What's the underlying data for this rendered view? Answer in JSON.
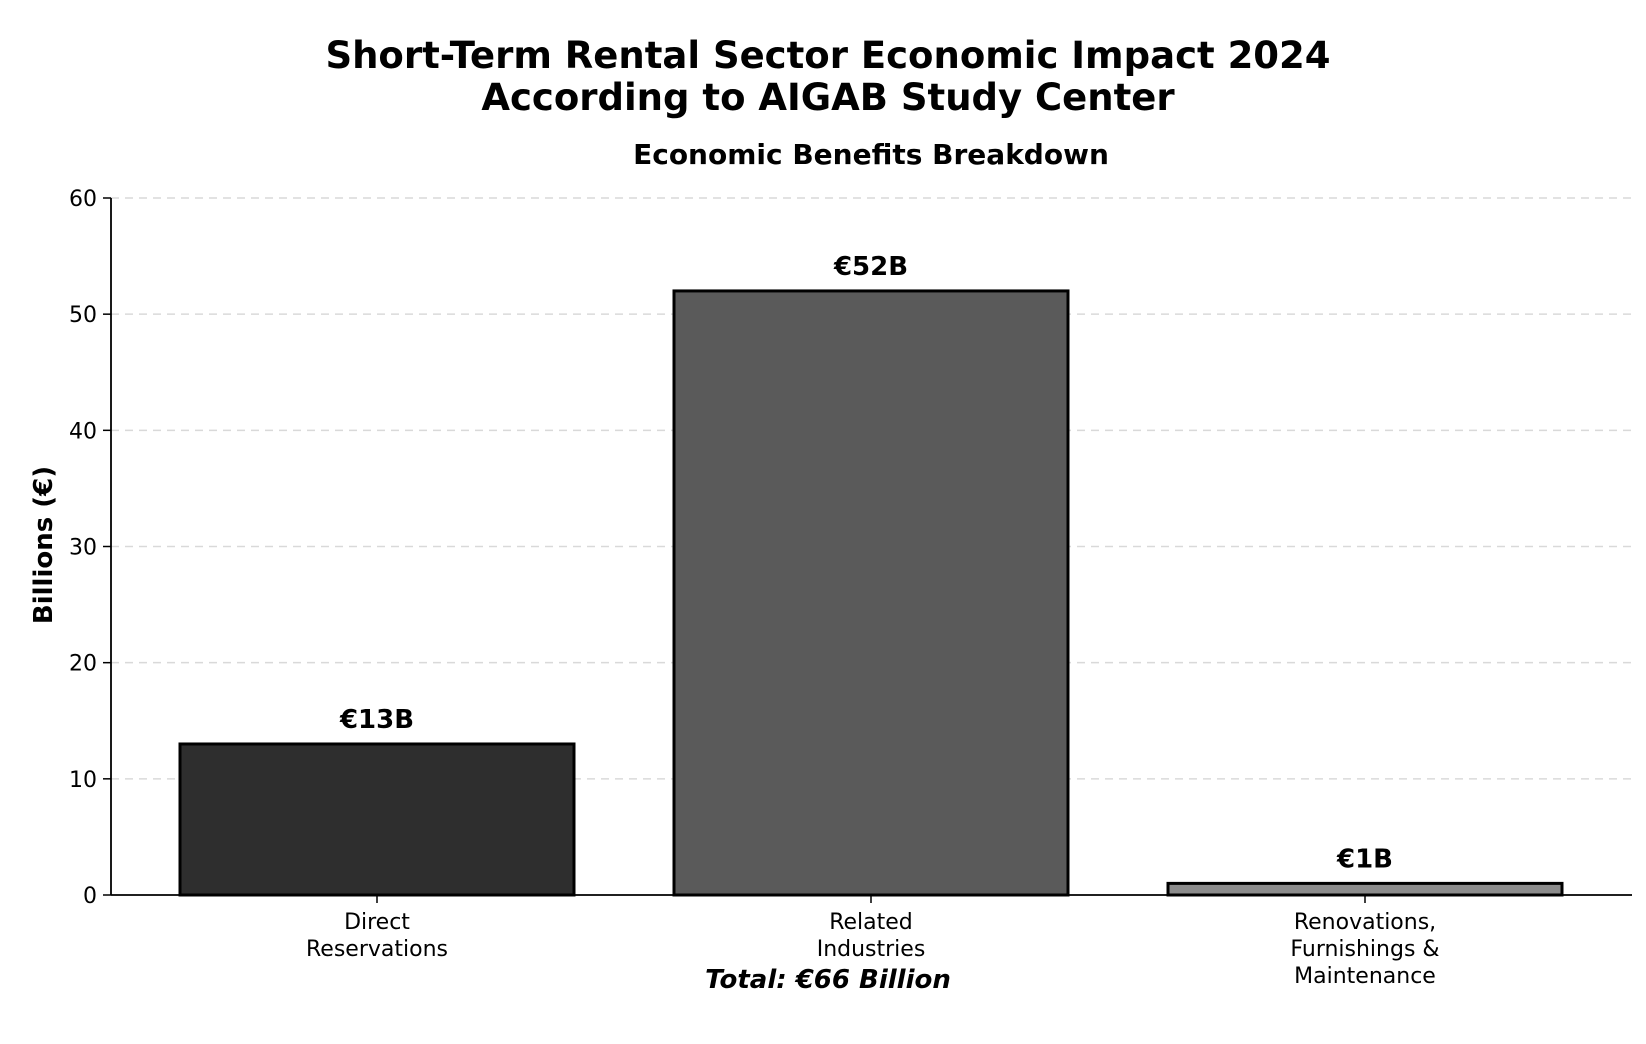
{
  "chart_data": {
    "type": "bar",
    "title_lines": [
      "Short-Term Rental Sector Economic Impact 2024",
      "According to AIGAB Study Center"
    ],
    "subtitle": "Economic Benefits Breakdown",
    "xlabel": "Total: €66 Billion",
    "ylabel": "Billions (€)",
    "ylim": [
      0,
      60
    ],
    "yticks": [
      0,
      10,
      20,
      30,
      40,
      50,
      60
    ],
    "grid": "horizontal dashed",
    "categories": [
      [
        "Direct",
        "Reservations"
      ],
      [
        "Related",
        "Industries"
      ],
      [
        "Renovations,",
        "Furnishings &",
        "Maintenance"
      ]
    ],
    "values": [
      13,
      52,
      1
    ],
    "data_labels": [
      "€13B",
      "€52B",
      "€1B"
    ],
    "colors": [
      "#2e2e2e",
      "#5a5a5a",
      "#8c8c8c"
    ]
  }
}
